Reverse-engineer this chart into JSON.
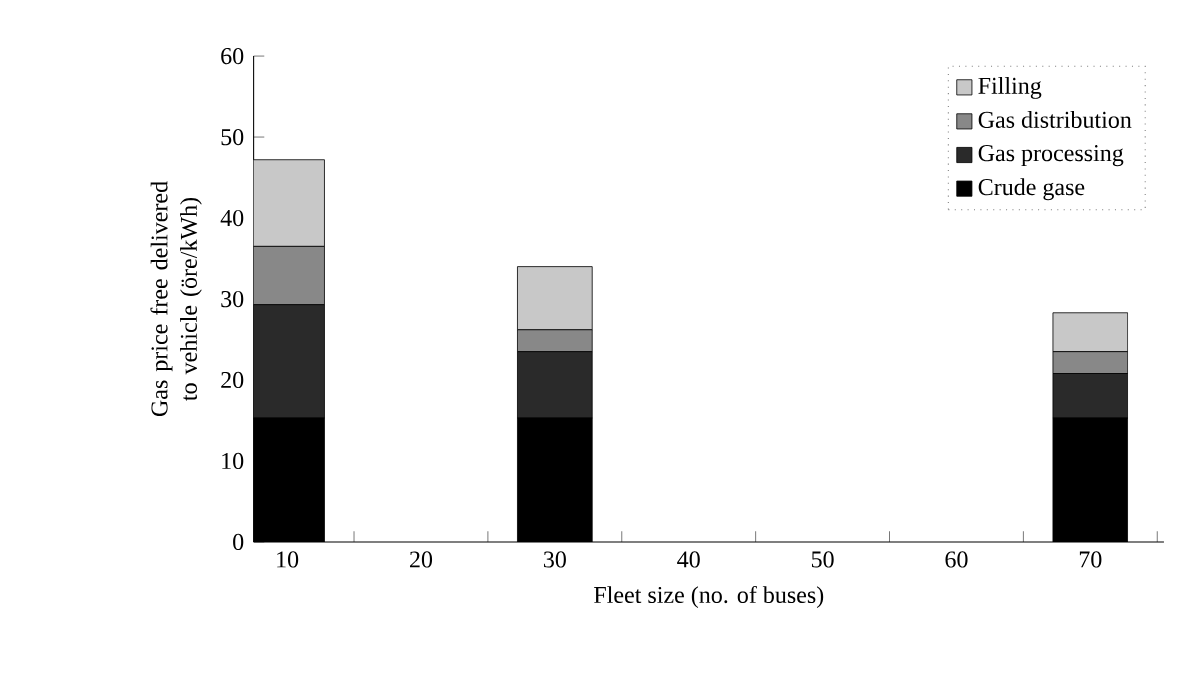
{
  "chart_data": {
    "type": "bar",
    "stacked": true,
    "xlabel": "Fleet size (no. of buses)",
    "ylabel": "Gas price free delivered to vehicle (öre/kWh)",
    "categories": [
      "10",
      "20",
      "30",
      "40",
      "50",
      "60",
      "70"
    ],
    "series": [
      {
        "name": "Crude gase",
        "color": "#000000",
        "values": [
          15.3,
          null,
          15.3,
          null,
          null,
          null,
          15.3
        ]
      },
      {
        "name": "Gas processing",
        "color": "#2a2a2a",
        "values": [
          14,
          null,
          8.2,
          null,
          null,
          null,
          5.5
        ]
      },
      {
        "name": "Gas distribution",
        "color": "#888888",
        "values": [
          7.2,
          null,
          2.7,
          null,
          null,
          null,
          2.7
        ]
      },
      {
        "name": "Filling",
        "color": "#c8c8c8",
        "values": [
          10.7,
          null,
          7.8,
          null,
          null,
          null,
          4.8
        ]
      }
    ],
    "ylim": [
      0,
      60
    ],
    "yticks": [
      0,
      10,
      20,
      30,
      40,
      50,
      60
    ],
    "grid": false,
    "legend": "top right"
  }
}
